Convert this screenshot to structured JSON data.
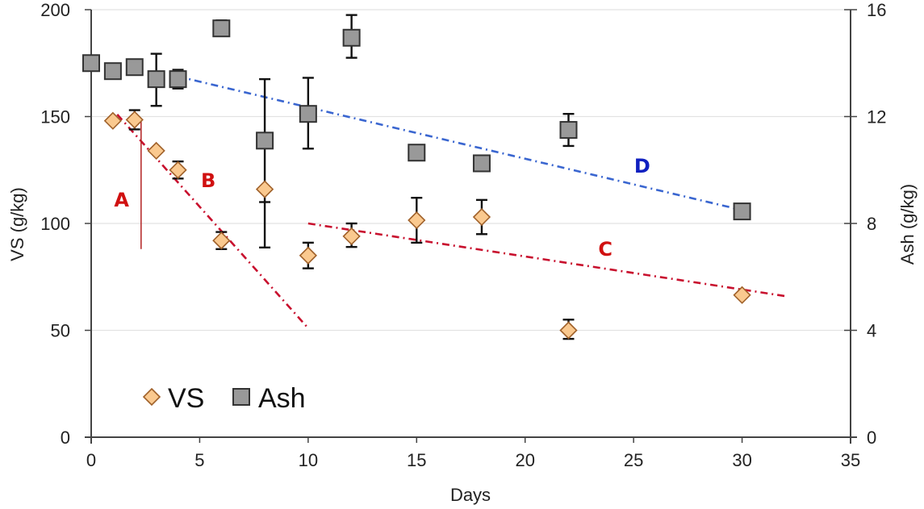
{
  "chart_data": {
    "type": "scatter",
    "title": "",
    "xlabel": "Days",
    "ylabel": "VS (g/kg)",
    "y2label": "Ash (g/kg)",
    "xlim": [
      0,
      35
    ],
    "ylim": [
      0,
      200
    ],
    "y2lim": [
      0,
      16
    ],
    "xticks": [
      0,
      5,
      10,
      15,
      20,
      25,
      30,
      35
    ],
    "yticks": [
      0,
      50,
      100,
      150,
      200
    ],
    "y2ticks": [
      0,
      4,
      8,
      12,
      16
    ],
    "grid": "horizontal",
    "legend_position": "bottom-left",
    "series": [
      {
        "name": "VS",
        "axis": "left",
        "marker": "diamond",
        "fill": "#FAC98F",
        "stroke": "#A0612A",
        "points": [
          {
            "x": 1,
            "y": 148
          },
          {
            "x": 2,
            "y": 148.5,
            "err_low": 144,
            "err_high": 153
          },
          {
            "x": 3,
            "y": 134
          },
          {
            "x": 4,
            "y": 125,
            "err_low": 121,
            "err_high": 129
          },
          {
            "x": 6,
            "y": 92,
            "err_low": 88,
            "err_high": 96
          },
          {
            "x": 8,
            "y": 116
          },
          {
            "x": 10,
            "y": 85,
            "err_low": 79,
            "err_high": 91
          },
          {
            "x": 12,
            "y": 94,
            "err_low": 89,
            "err_high": 100
          },
          {
            "x": 15,
            "y": 101.5,
            "err_low": 91,
            "err_high": 112
          },
          {
            "x": 18,
            "y": 103,
            "err_low": 95,
            "err_high": 111
          },
          {
            "x": 22,
            "y": 50,
            "err_low": 46,
            "err_high": 55
          },
          {
            "x": 30,
            "y": 66.5
          }
        ]
      },
      {
        "name": "Ash",
        "axis": "right",
        "marker": "square",
        "fill": "#999999",
        "stroke": "#333333",
        "points": [
          {
            "x": 0,
            "y": 14.0
          },
          {
            "x": 1,
            "y": 13.7
          },
          {
            "x": 2,
            "y": 13.85
          },
          {
            "x": 3,
            "y": 13.4,
            "err_low": 12.4,
            "err_high": 14.35
          },
          {
            "x": 4,
            "y": 13.4,
            "err_low": 13.05,
            "err_high": 13.75
          },
          {
            "x": 6,
            "y": 15.3,
            "err_low": 15.15,
            "err_high": 15.6
          },
          {
            "x": 8,
            "y": 11.1,
            "err_low": 7.1,
            "err_high": 13.4
          },
          {
            "x": 10,
            "y": 12.1,
            "err_low": 10.8,
            "err_high": 13.45
          },
          {
            "x": 12,
            "y": 14.95,
            "err_low": 14.2,
            "err_high": 15.8
          },
          {
            "x": 15,
            "y": 10.65
          },
          {
            "x": 18,
            "y": 10.25
          },
          {
            "x": 22,
            "y": 11.5,
            "err_low": 10.9,
            "err_high": 12.1
          },
          {
            "x": 30,
            "y": 8.45
          }
        ]
      }
    ],
    "vs_error_bar_extra": [
      {
        "x": 8,
        "err_low": 110,
        "err_high": 110
      }
    ],
    "trend_lines": [
      {
        "label": "B",
        "color": "#C8102E",
        "style": "dash-dot",
        "axis": "left",
        "from": {
          "x": 1.2,
          "y": 151
        },
        "to": {
          "x": 10,
          "y": 51
        }
      },
      {
        "label": "C",
        "color": "#C8102E",
        "style": "dash-dot",
        "axis": "left",
        "from": {
          "x": 10,
          "y": 100
        },
        "to": {
          "x": 32,
          "y": 66
        }
      },
      {
        "label": "D",
        "color": "#3A66D0",
        "style": "dash-dot",
        "axis": "right",
        "from": {
          "x": 4,
          "y": 13.5
        },
        "to": {
          "x": 30,
          "y": 8.5
        }
      }
    ],
    "marker_lines": [
      {
        "label": "A",
        "color": "#B22222",
        "x": 2.3,
        "y_from": 88,
        "y_to": 148
      }
    ],
    "annotations": [
      {
        "text": "A",
        "color": "#D01010",
        "x": 1.4,
        "y": 108,
        "axis": "left"
      },
      {
        "text": "B",
        "color": "#D01010",
        "x": 5.4,
        "y": 117,
        "axis": "left"
      },
      {
        "text": "C",
        "color": "#D01010",
        "x": 23.7,
        "y": 85,
        "axis": "left"
      },
      {
        "text": "D",
        "color": "#1020C0",
        "x": 25.4,
        "y": 9.9,
        "axis": "right"
      }
    ],
    "legend": [
      {
        "label": "VS",
        "marker": "diamond"
      },
      {
        "label": "Ash",
        "marker": "square"
      }
    ]
  }
}
